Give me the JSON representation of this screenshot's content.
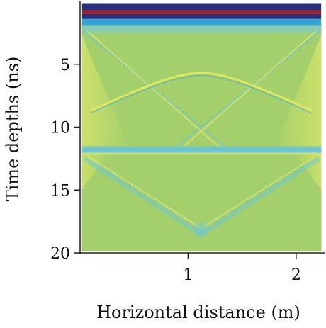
{
  "chart_data": {
    "type": "heatmap",
    "title": "",
    "xlabel": "Horizontal distance (m)",
    "ylabel": "Time depths (ns)",
    "xlim": [
      0,
      2.25
    ],
    "ylim": [
      20,
      0
    ],
    "y_inverted": true,
    "x_ticks": [
      1,
      2
    ],
    "y_ticks": [
      5,
      10,
      15,
      20
    ],
    "x_tick_labels": [
      "1",
      "2"
    ],
    "y_tick_labels": [
      "5",
      "10",
      "15",
      "20"
    ],
    "colormap": "jet",
    "background_color": "#a4d06b",
    "features": [
      {
        "name": "direct-wave-bands",
        "y_ns": [
          0.1,
          1.9
        ],
        "colors": [
          "#2a2f7c",
          "#9c1f2a",
          "#2a2f7c",
          "#2fa6d8"
        ]
      },
      {
        "name": "hyperbola-apex",
        "x_m": 1.12,
        "y_ns": 5.7,
        "color": "#e0e75a"
      },
      {
        "name": "horizontal-reflector",
        "y_ns": 11.8,
        "color": "#6ec6d4"
      },
      {
        "name": "v-diffraction-apex",
        "x_m": 1.12,
        "y_ns": 18.5,
        "color": "#6ec6d4"
      }
    ]
  }
}
